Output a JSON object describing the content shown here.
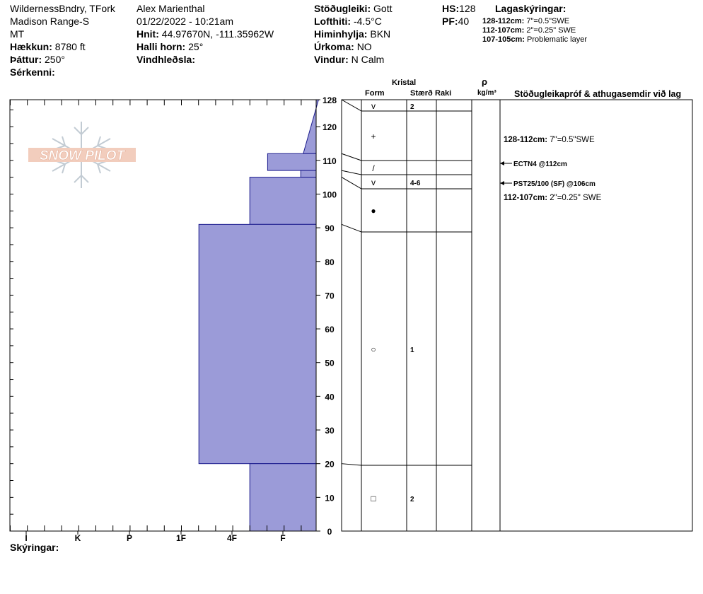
{
  "header": {
    "location_line1": "WildernessBndry, TFork",
    "location_line2": "Madison Range-S",
    "location_line3": "MT",
    "elevation_label": "Hækkun:",
    "elevation_value": "8780 ft",
    "aspect_label": "Þáttur:",
    "aspect_value": "250°",
    "features_label": "Sérkenni:",
    "observer": "Alex Marienthal",
    "datetime": "01/22/2022 - 10:21am",
    "coords_label": "Hnit:",
    "coords_value": "44.97670N, -111.35962W",
    "slope_label": "Halli horn:",
    "slope_value": "25°",
    "wind_loading_label": "Vindhleðsla:",
    "stability_label": "Stöðugleiki:",
    "stability_value": "Gott",
    "air_temp_label": "Lofthiti:",
    "air_temp_value": "-4.5°C",
    "sky_label": "Himinhylja:",
    "sky_value": "BKN",
    "precip_label": "Úrkoma:",
    "precip_value": "NO",
    "wind_label": "Vindur:",
    "wind_value": "N Calm",
    "hs_label": "HS:",
    "hs_value": "128",
    "pf_label": "PF:",
    "pf_value": "40",
    "layer_notes_title": "Lagaskýringar:",
    "layer_notes": [
      {
        "range": "128-112cm:",
        "text": "7\"=0.5\"SWE"
      },
      {
        "range": "112-107cm:",
        "text": "2\"=0.25\" SWE"
      },
      {
        "range": "107-105cm:",
        "text": "Problematic layer"
      }
    ]
  },
  "logo": {
    "text": "SNOW PILOT"
  },
  "columns": {
    "crystal": "Kristal",
    "form": "Form",
    "size": "Stærð",
    "moisture": "Raki",
    "rho": "ρ",
    "density_unit": "kg/m³",
    "tests": "Stöðugleikapróf & athugasemdir við lag"
  },
  "legend_label": "Skýringar:",
  "chart_data": {
    "type": "bar",
    "orientation": "horizontal-profile",
    "x_axis": {
      "categories": [
        "I",
        "K",
        "P",
        "1F",
        "4F",
        "F"
      ],
      "reversed": true
    },
    "y_axis": {
      "range": [
        0,
        128
      ],
      "ticks": [
        0,
        10,
        20,
        30,
        40,
        50,
        60,
        70,
        80,
        90,
        100,
        110,
        120,
        128
      ]
    },
    "hardness_layers": [
      {
        "top": 128,
        "bottom": 112,
        "hardness_top": 0.3,
        "hardness_bottom": 0.6
      },
      {
        "top": 112,
        "bottom": 107,
        "hardness": 1.3
      },
      {
        "top": 107,
        "bottom": 105,
        "hardness": 0.65
      },
      {
        "top": 105,
        "bottom": 91,
        "hardness": 1.65
      },
      {
        "top": 91,
        "bottom": 20,
        "hardness": 2.65
      },
      {
        "top": 20,
        "bottom": 0,
        "hardness": 1.65
      }
    ],
    "layer_boundaries": [
      128,
      112,
      107,
      105,
      91,
      20,
      0
    ],
    "crystals": [
      {
        "height": 130,
        "symbol": "v",
        "size": "2"
      },
      {
        "height": 120,
        "symbol": "+",
        "size": ""
      },
      {
        "height": 110,
        "symbol": "/",
        "size": ""
      },
      {
        "height": 106,
        "symbol": "v",
        "size": "4-6"
      },
      {
        "height": 98,
        "symbol": "●",
        "size": ""
      },
      {
        "height": 55,
        "symbol": "○",
        "size": "1"
      },
      {
        "height": 10,
        "symbol": "□",
        "size": "2"
      }
    ],
    "test_results": [
      {
        "height": 112,
        "text": "ECTN4 @112cm"
      },
      {
        "height": 106,
        "text": "PST25/100 (SF) @106cm"
      }
    ],
    "layer_comments": [
      {
        "height": 119,
        "text": "128-112cm:",
        "detail": "7\"=0.5\"SWE"
      },
      {
        "height": 101,
        "text": "112-107cm:",
        "detail": "2\"=0.25\" SWE"
      }
    ]
  }
}
